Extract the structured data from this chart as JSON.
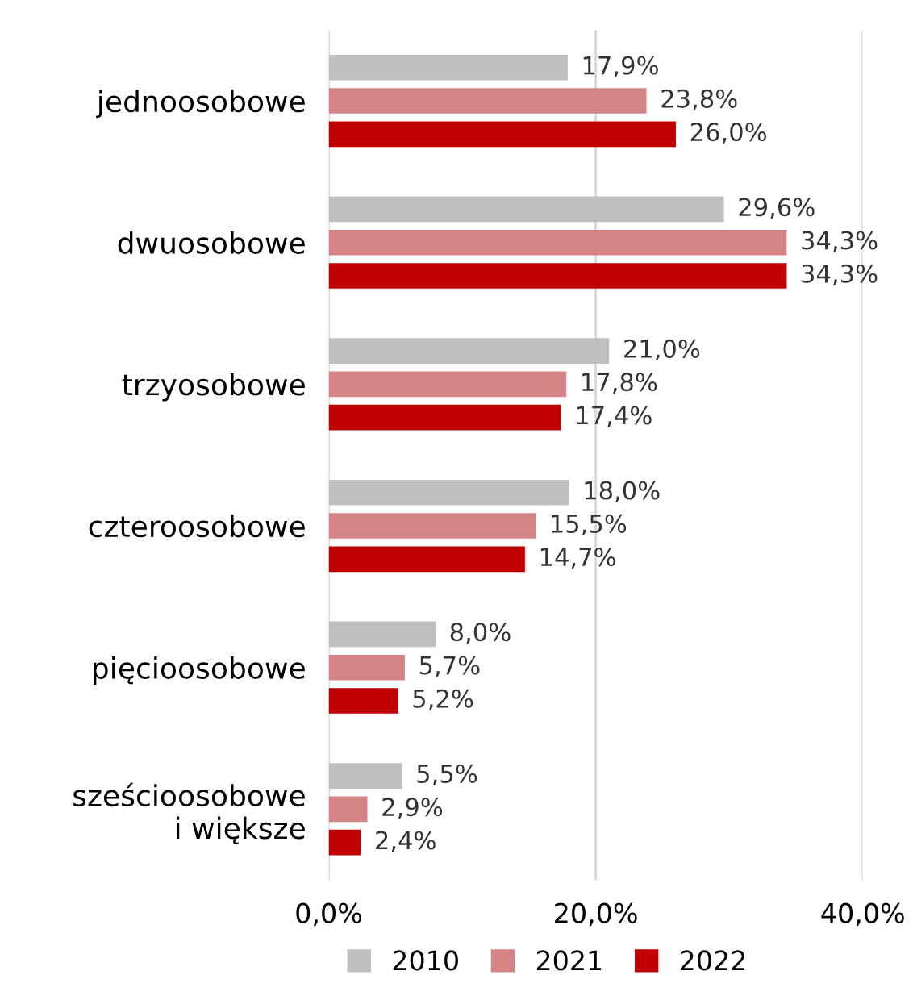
{
  "chart_data": {
    "type": "bar",
    "orientation": "horizontal",
    "categories": [
      "jednoosobowe",
      "dwuosobowe",
      "trzyosobowe",
      "czteroosobowe",
      "pięcioosobowe",
      "sześcioosobowe\ni większe"
    ],
    "series": [
      {
        "name": "2010",
        "color": "#bfbfbf",
        "values": [
          17.9,
          29.6,
          21.0,
          18.0,
          8.0,
          5.5
        ],
        "value_labels": [
          "17,9%",
          "29,6%",
          "21,0%",
          "18,0%",
          "8,0%",
          "5,5%"
        ]
      },
      {
        "name": "2021",
        "color": "#d48484",
        "values": [
          23.8,
          34.3,
          17.8,
          15.5,
          5.7,
          2.9
        ],
        "value_labels": [
          "23,8%",
          "34,3%",
          "17,8%",
          "15,5%",
          "5,7%",
          "2,9%"
        ]
      },
      {
        "name": "2022",
        "color": "#c00000",
        "values": [
          26.0,
          34.3,
          17.4,
          14.7,
          5.2,
          2.4
        ],
        "value_labels": [
          "26,0%",
          "34,3%",
          "17,4%",
          "14,7%",
          "5,2%",
          "2,4%"
        ]
      }
    ],
    "xlim": [
      0,
      40
    ],
    "xticks": [
      {
        "value": 0,
        "label": "0,0%"
      },
      {
        "value": 20,
        "label": "20,0%"
      },
      {
        "value": 40,
        "label": "40,0%"
      }
    ],
    "grid": "x",
    "legend": "bottom"
  }
}
